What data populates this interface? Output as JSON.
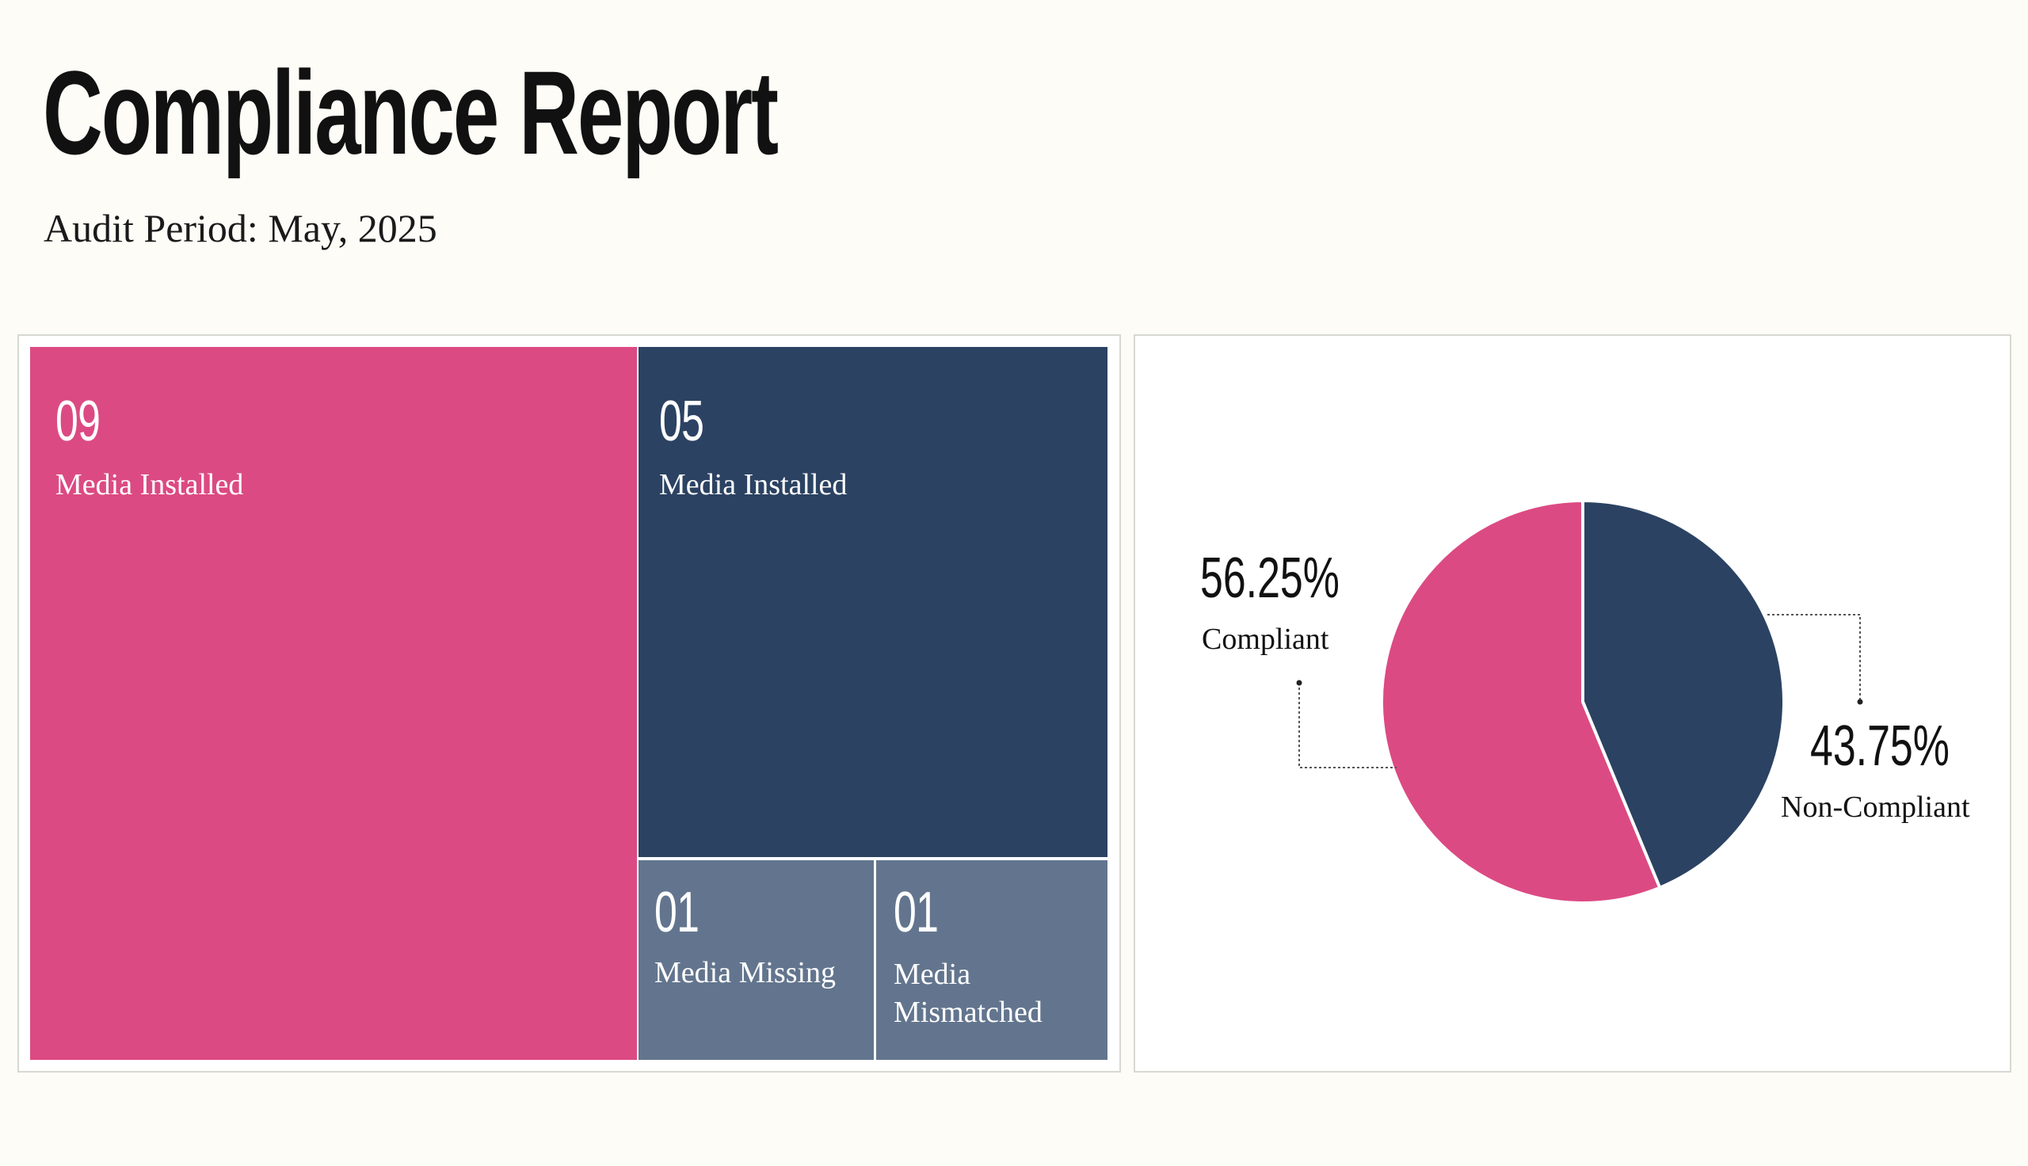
{
  "header": {
    "title": "Compliance Report",
    "subtitle": "Audit Period: May, 2025"
  },
  "colors": {
    "pink": "#dc4a83",
    "navy": "#2b4262",
    "slate": "#63758e",
    "background": "#fdfcf7"
  },
  "chart_data": [
    {
      "type": "treemap",
      "title": "",
      "items": [
        {
          "value": 9,
          "display": "09",
          "label": "Media Installed",
          "color": "#dc4a83"
        },
        {
          "value": 5,
          "display": "05",
          "label": "Media Installed",
          "color": "#2b4262"
        },
        {
          "value": 1,
          "display": "01",
          "label": "Media Missing",
          "color": "#63758e"
        },
        {
          "value": 1,
          "display": "01",
          "label": "Media Mismatched",
          "color": "#63758e"
        }
      ]
    },
    {
      "type": "pie",
      "title": "",
      "slices": [
        {
          "label": "Compliant",
          "value": 56.25,
          "display": "56.25%",
          "color": "#dc4a83"
        },
        {
          "label": "Non-Compliant",
          "value": 43.75,
          "display": "43.75%",
          "color": "#2b4262"
        }
      ]
    }
  ]
}
